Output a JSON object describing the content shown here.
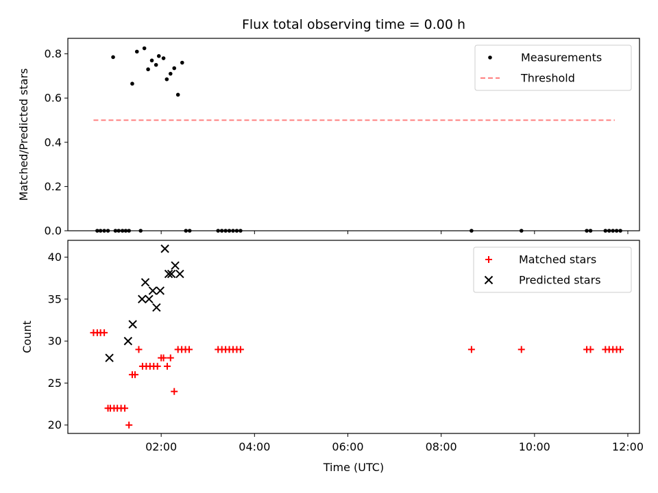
{
  "chart_data": [
    {
      "type": "scatter",
      "title": "Flux total observing time = 0.00 h",
      "xlabel": "",
      "ylabel": "Matched/Predicted stars",
      "xlim": [
        0.0,
        12.25
      ],
      "ylim": [
        0.0,
        0.87
      ],
      "yticks": [
        0.0,
        0.2,
        0.4,
        0.6,
        0.8
      ],
      "ytick_labels": [
        "0.0",
        "0.2",
        "0.4",
        "0.6",
        "0.8"
      ],
      "legend_position": "top-right",
      "series": [
        {
          "name": "Measurements",
          "kind": "dot",
          "color": "#000000",
          "x": [
            0.97,
            1.38,
            1.48,
            1.64,
            1.72,
            1.8,
            1.89,
            1.95,
            2.05,
            2.12,
            2.2,
            2.28,
            2.36,
            2.45,
            0.63,
            0.7,
            0.78,
            0.86,
            1.02,
            1.09,
            1.17,
            1.24,
            1.31,
            1.56,
            2.53,
            2.61,
            3.22,
            3.3,
            3.38,
            3.46,
            3.54,
            3.62,
            3.7,
            8.65,
            9.72,
            11.12,
            11.2,
            11.52,
            11.6,
            11.68,
            11.76,
            11.84
          ],
          "y": [
            0.785,
            0.665,
            0.81,
            0.825,
            0.73,
            0.77,
            0.75,
            0.79,
            0.78,
            0.685,
            0.71,
            0.735,
            0.615,
            0.76,
            0,
            0,
            0,
            0,
            0,
            0,
            0,
            0,
            0,
            0,
            0,
            0,
            0,
            0,
            0,
            0,
            0,
            0,
            0,
            0,
            0,
            0,
            0,
            0,
            0,
            0,
            0,
            0
          ]
        },
        {
          "name": "Threshold",
          "kind": "dashed-line",
          "color": "#ff7f7f",
          "x": [
            0.55,
            11.72
          ],
          "y": [
            0.5,
            0.5
          ]
        }
      ]
    },
    {
      "type": "scatter",
      "title": "",
      "xlabel": "Time (UTC)",
      "ylabel": "Count",
      "xlim": [
        0.0,
        12.25
      ],
      "ylim": [
        19.0,
        42.0
      ],
      "xticks": [
        2,
        4,
        6,
        8,
        10,
        12
      ],
      "xtick_labels": [
        "02:00",
        "04:00",
        "06:00",
        "08:00",
        "10:00",
        "12:00"
      ],
      "yticks": [
        20,
        25,
        30,
        35,
        40
      ],
      "ytick_labels": [
        "20",
        "25",
        "30",
        "35",
        "40"
      ],
      "legend_position": "top-right",
      "series": [
        {
          "name": "Matched stars",
          "kind": "plus",
          "color": "#ff0000",
          "x": [
            0.55,
            0.63,
            0.7,
            0.78,
            0.86,
            0.91,
            0.99,
            1.06,
            1.14,
            1.22,
            1.31,
            1.38,
            1.44,
            1.52,
            1.6,
            1.68,
            1.76,
            1.84,
            1.92,
            2.0,
            2.05,
            2.13,
            2.2,
            2.28,
            2.36,
            2.44,
            2.52,
            2.6,
            3.22,
            3.3,
            3.38,
            3.46,
            3.54,
            3.62,
            3.7,
            8.65,
            9.72,
            11.12,
            11.2,
            11.52,
            11.6,
            11.68,
            11.76,
            11.84
          ],
          "y": [
            31,
            31,
            31,
            31,
            22,
            22,
            22,
            22,
            22,
            22,
            20,
            26,
            26,
            29,
            27,
            27,
            27,
            27,
            27,
            28,
            28,
            27,
            28,
            24,
            29,
            29,
            29,
            29,
            29,
            29,
            29,
            29,
            29,
            29,
            29,
            29,
            29,
            29,
            29,
            29,
            29,
            29,
            29,
            29
          ]
        },
        {
          "name": "Predicted stars",
          "kind": "x",
          "color": "#000000",
          "x": [
            0.89,
            1.29,
            1.39,
            1.59,
            1.66,
            1.74,
            1.82,
            1.9,
            1.98,
            2.08,
            2.16,
            2.22,
            2.3,
            2.4
          ],
          "y": [
            28,
            30,
            32,
            35,
            37,
            35,
            36,
            34,
            36,
            41,
            38,
            38,
            39,
            38
          ]
        }
      ]
    }
  ]
}
